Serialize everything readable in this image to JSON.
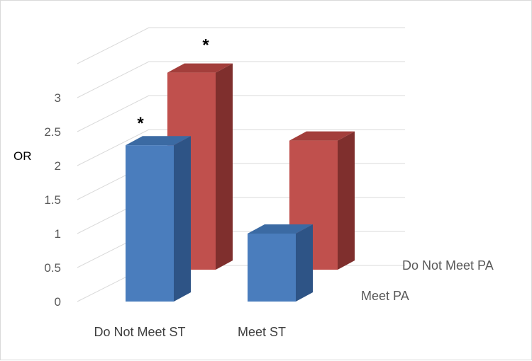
{
  "chart_data": {
    "type": "bar",
    "projection": "3d-clustered",
    "ylabel": "OR",
    "ylim": [
      0,
      3.5
    ],
    "yticks": [
      "0",
      "0.5",
      "1",
      "1.5",
      "2",
      "2.5",
      "3"
    ],
    "categories": [
      "Do Not Meet ST",
      "Meet ST"
    ],
    "series": [
      {
        "name": "Meet PA",
        "values": [
          2.3,
          1.0
        ],
        "annotations": [
          "*",
          ""
        ],
        "colors": {
          "front": "#4a7dbd",
          "side": "#2e5486",
          "top": "#3b6aa3"
        }
      },
      {
        "name": "Do Not Meet PA",
        "values": [
          2.9,
          1.9
        ],
        "annotations": [
          "*",
          ""
        ],
        "colors": {
          "front": "#c0504d",
          "side": "#7f2f2d",
          "top": "#a33e3b"
        }
      }
    ],
    "grid": true
  }
}
